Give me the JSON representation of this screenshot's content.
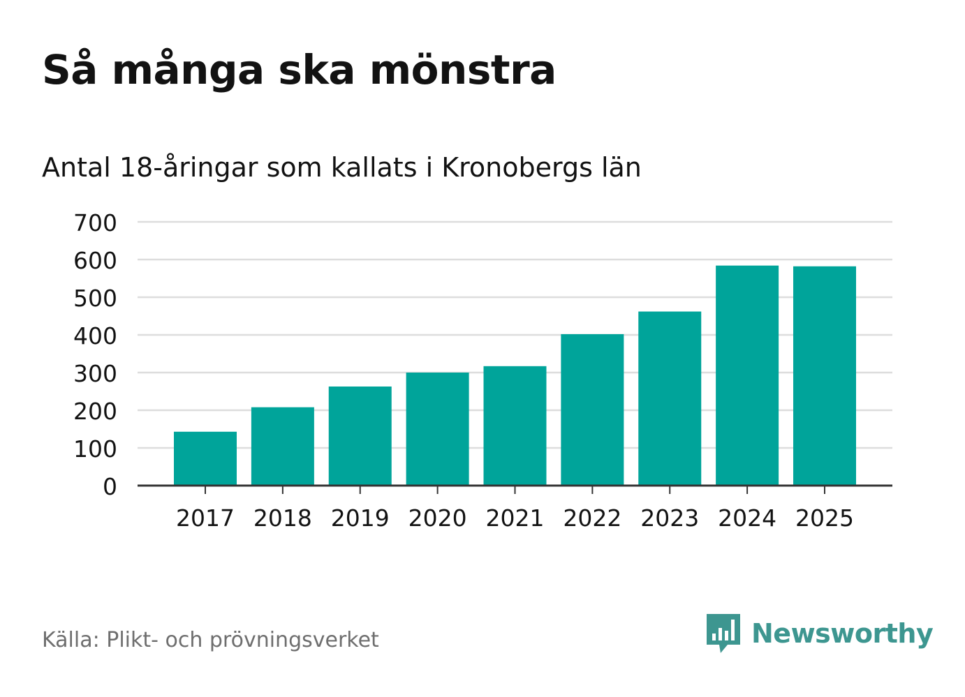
{
  "title": "Så många ska mönstra",
  "subtitle": "Antal 18-åringar som kallats i Kronobergs län",
  "source": "Källa: Plikt- och prövningsverket",
  "brand": {
    "name": "Newsworthy",
    "icon": "newsworthy-logo-icon",
    "color": "#3d9690"
  },
  "colors": {
    "bar": "#00a49a",
    "grid": "#dddddd",
    "axis": "#333333",
    "text": "#121212"
  },
  "chart_data": {
    "type": "bar",
    "title": "Så många ska mönstra",
    "subtitle": "Antal 18-åringar som kallats i Kronobergs län",
    "xlabel": "",
    "ylabel": "",
    "categories": [
      "2017",
      "2018",
      "2019",
      "2020",
      "2021",
      "2022",
      "2023",
      "2024",
      "2025"
    ],
    "values": [
      143,
      208,
      263,
      300,
      317,
      402,
      462,
      584,
      582
    ],
    "ylim": [
      0,
      700
    ],
    "yticks": [
      "0",
      "100",
      "200",
      "300",
      "400",
      "500",
      "600",
      "700"
    ],
    "grid": true,
    "legend": "none"
  }
}
